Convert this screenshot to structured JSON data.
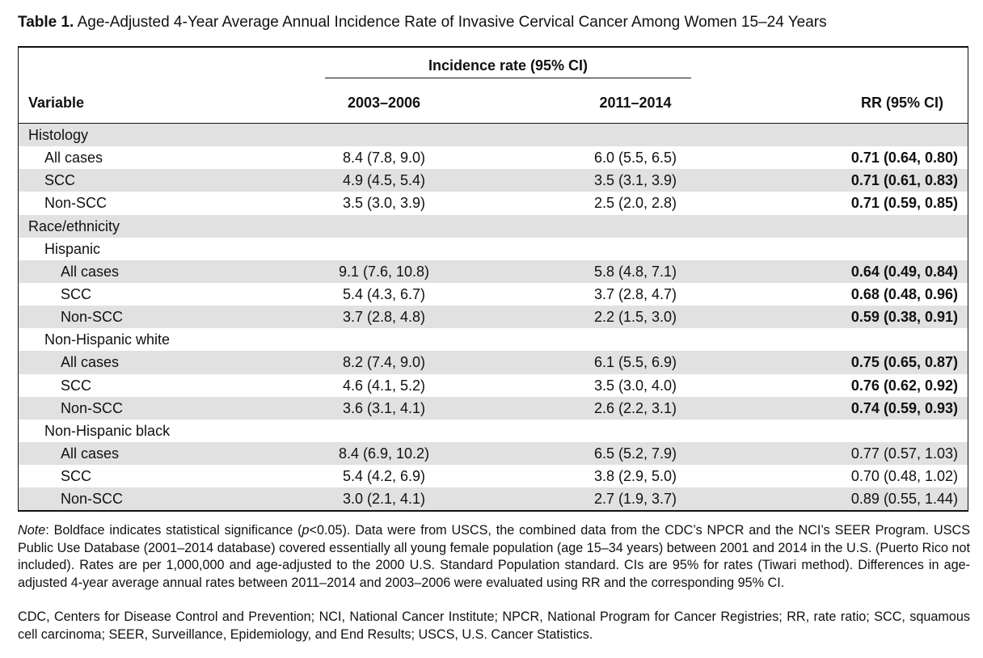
{
  "caption": {
    "label": "Table 1.",
    "text": "Age-Adjusted 4-Year Average Annual Incidence Rate of Invasive Cervical Cancer Among Women 15–24 Years"
  },
  "header": {
    "spanner": "Incidence rate (95% CI)",
    "variable": "Variable",
    "period1": "2003–2006",
    "period2": "2011–2014",
    "rr": "RR (95% CI)"
  },
  "rows": [
    {
      "label": "Histology",
      "indent": 0,
      "shade": true,
      "p1": "",
      "p2": "",
      "rr": "",
      "bold": false
    },
    {
      "label": "All cases",
      "indent": 1,
      "shade": false,
      "p1": "8.4 (7.8, 9.0)",
      "p2": "6.0 (5.5, 6.5)",
      "rr": "0.71 (0.64, 0.80)",
      "bold": true
    },
    {
      "label": "SCC",
      "indent": 1,
      "shade": true,
      "p1": "4.9 (4.5, 5.4)",
      "p2": "3.5 (3.1, 3.9)",
      "rr": "0.71 (0.61, 0.83)",
      "bold": true
    },
    {
      "label": "Non-SCC",
      "indent": 1,
      "shade": false,
      "p1": "3.5 (3.0, 3.9)",
      "p2": "2.5 (2.0, 2.8)",
      "rr": "0.71 (0.59, 0.85)",
      "bold": true
    },
    {
      "label": "Race/ethnicity",
      "indent": 0,
      "shade": true,
      "p1": "",
      "p2": "",
      "rr": "",
      "bold": false
    },
    {
      "label": "Hispanic",
      "indent": 1,
      "shade": false,
      "p1": "",
      "p2": "",
      "rr": "",
      "bold": false
    },
    {
      "label": "All cases",
      "indent": 2,
      "shade": true,
      "p1": "9.1 (7.6, 10.8)",
      "p2": "5.8 (4.8, 7.1)",
      "rr": "0.64 (0.49, 0.84)",
      "bold": true
    },
    {
      "label": "SCC",
      "indent": 2,
      "shade": false,
      "p1": "5.4 (4.3, 6.7)",
      "p2": "3.7 (2.8, 4.7)",
      "rr": "0.68 (0.48, 0.96)",
      "bold": true
    },
    {
      "label": "Non-SCC",
      "indent": 2,
      "shade": true,
      "p1": "3.7 (2.8, 4.8)",
      "p2": "2.2 (1.5, 3.0)",
      "rr": "0.59 (0.38, 0.91)",
      "bold": true
    },
    {
      "label": "Non-Hispanic white",
      "indent": 1,
      "shade": false,
      "p1": "",
      "p2": "",
      "rr": "",
      "bold": false
    },
    {
      "label": "All cases",
      "indent": 2,
      "shade": true,
      "p1": "8.2 (7.4, 9.0)",
      "p2": "6.1 (5.5, 6.9)",
      "rr": "0.75 (0.65, 0.87)",
      "bold": true
    },
    {
      "label": "SCC",
      "indent": 2,
      "shade": false,
      "p1": "4.6 (4.1, 5.2)",
      "p2": "3.5 (3.0, 4.0)",
      "rr": "0.76 (0.62, 0.92)",
      "bold": true
    },
    {
      "label": "Non-SCC",
      "indent": 2,
      "shade": true,
      "p1": "3.6 (3.1, 4.1)",
      "p2": "2.6 (2.2, 3.1)",
      "rr": "0.74 (0.59, 0.93)",
      "bold": true
    },
    {
      "label": "Non-Hispanic black",
      "indent": 1,
      "shade": false,
      "p1": "",
      "p2": "",
      "rr": "",
      "bold": false
    },
    {
      "label": "All cases",
      "indent": 2,
      "shade": true,
      "p1": "8.4 (6.9, 10.2)",
      "p2": "6.5 (5.2, 7.9)",
      "rr": "0.77 (0.57, 1.03)",
      "bold": false
    },
    {
      "label": "SCC",
      "indent": 2,
      "shade": false,
      "p1": "5.4 (4.2, 6.9)",
      "p2": "3.8 (2.9, 5.0)",
      "rr": "0.70 (0.48, 1.02)",
      "bold": false
    },
    {
      "label": "Non-SCC",
      "indent": 2,
      "shade": true,
      "p1": "3.0 (2.1, 4.1)",
      "p2": "2.7 (1.9, 3.7)",
      "rr": "0.89 (0.55, 1.44)",
      "bold": false
    }
  ],
  "note": {
    "label": "Note",
    "text_a": ": Boldface indicates statistical significance (",
    "p_symbol": "p",
    "text_b": "<0.05). Data were from USCS, the combined data from the CDC’s NPCR and the NCI’s SEER Program. USCS Public Use Database (2001–2014 database) covered essentially all young female population (age 15–34 years) between 2001 and 2014 in the U.S. (Puerto Rico not included). Rates are per 1,000,000 and age-adjusted to the 2000 U.S. Standard Population standard. CIs are 95% for rates (Tiwari method). Differences in age-adjusted 4-year average annual rates between 2011–2014 and 2003–2006 were evaluated using RR and the corresponding 95% CI."
  },
  "abbreviations": "CDC, Centers for Disease Control and Prevention; NCI, National Cancer Institute; NPCR, National Program for Cancer Registries; RR, rate ratio; SCC, squamous cell carcinoma; SEER, Surveillance, Epidemiology, and End Results; USCS, U.S. Cancer Statistics."
}
